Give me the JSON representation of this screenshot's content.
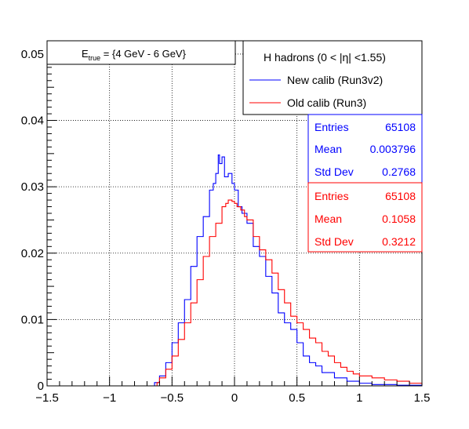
{
  "chart_data": {
    "type": "histogram",
    "xlim": [
      -1.5,
      1.5
    ],
    "ylim": [
      0,
      0.052
    ],
    "x_ticks": [
      "−1.5",
      "−1",
      "−0.5",
      "0",
      "0.5",
      "1",
      "1.5"
    ],
    "y_ticks": [
      "0",
      "0.01",
      "0.02",
      "0.03",
      "0.04",
      "0.05"
    ],
    "grid": true,
    "energy_label": {
      "main": "E",
      "sub": "true",
      "rest": " =  {4 GeV - 6 GeV}"
    },
    "legend": {
      "header": "H hadrons (0 < |η| <1.55)",
      "position": "top-right",
      "entries": [
        "New calib (Run3v2)",
        "Old calib (Run3)"
      ]
    },
    "stats": [
      {
        "color": "#0000ff",
        "rows": [
          [
            "Entries",
            "65108"
          ],
          [
            "Mean",
            "0.003796"
          ],
          [
            "Std Dev",
            "0.2768"
          ]
        ]
      },
      {
        "color": "#ff0000",
        "rows": [
          [
            "Entries",
            "65108"
          ],
          [
            "Mean",
            "0.1058"
          ],
          [
            "Std Dev",
            "0.3212"
          ]
        ]
      }
    ],
    "series": [
      {
        "color": "#0000ff",
        "points": [
          [
            -1.5,
            0
          ],
          [
            -0.66,
            0
          ],
          [
            -0.64,
            0.0005
          ],
          [
            -0.6,
            0.0015
          ],
          [
            -0.55,
            0.0035
          ],
          [
            -0.5,
            0.0065
          ],
          [
            -0.45,
            0.0095
          ],
          [
            -0.4,
            0.013
          ],
          [
            -0.35,
            0.018
          ],
          [
            -0.3,
            0.0225
          ],
          [
            -0.25,
            0.0255
          ],
          [
            -0.2,
            0.0295
          ],
          [
            -0.17,
            0.0305
          ],
          [
            -0.15,
            0.032
          ],
          [
            -0.13,
            0.0348
          ],
          [
            -0.12,
            0.0335
          ],
          [
            -0.1,
            0.0345
          ],
          [
            -0.08,
            0.0315
          ],
          [
            -0.05,
            0.032
          ],
          [
            -0.02,
            0.0305
          ],
          [
            0,
            0.0295
          ],
          [
            0.03,
            0.027
          ],
          [
            0.06,
            0.026
          ],
          [
            0.1,
            0.0245
          ],
          [
            0.15,
            0.021
          ],
          [
            0.2,
            0.0195
          ],
          [
            0.25,
            0.0165
          ],
          [
            0.3,
            0.014
          ],
          [
            0.35,
            0.011
          ],
          [
            0.4,
            0.0095
          ],
          [
            0.45,
            0.0085
          ],
          [
            0.5,
            0.0065
          ],
          [
            0.55,
            0.0045
          ],
          [
            0.6,
            0.0035
          ],
          [
            0.65,
            0.003
          ],
          [
            0.7,
            0.002
          ],
          [
            0.8,
            0.0012
          ],
          [
            0.9,
            0.0007
          ],
          [
            1.0,
            0.0004
          ],
          [
            1.1,
            0.0002
          ],
          [
            1.3,
            0.0001
          ],
          [
            1.5,
            0
          ]
        ]
      },
      {
        "color": "#ff0000",
        "points": [
          [
            -1.5,
            0
          ],
          [
            -0.65,
            0
          ],
          [
            -0.62,
            0.0005
          ],
          [
            -0.6,
            0.0012
          ],
          [
            -0.55,
            0.0025
          ],
          [
            -0.5,
            0.0045
          ],
          [
            -0.45,
            0.007
          ],
          [
            -0.4,
            0.0095
          ],
          [
            -0.35,
            0.0125
          ],
          [
            -0.3,
            0.016
          ],
          [
            -0.25,
            0.0195
          ],
          [
            -0.2,
            0.0225
          ],
          [
            -0.15,
            0.0245
          ],
          [
            -0.1,
            0.027
          ],
          [
            -0.07,
            0.0275
          ],
          [
            -0.05,
            0.028
          ],
          [
            -0.02,
            0.0278
          ],
          [
            0,
            0.0275
          ],
          [
            0.02,
            0.027
          ],
          [
            0.05,
            0.0265
          ],
          [
            0.08,
            0.0255
          ],
          [
            0.1,
            0.025
          ],
          [
            0.15,
            0.0225
          ],
          [
            0.2,
            0.0205
          ],
          [
            0.25,
            0.019
          ],
          [
            0.3,
            0.017
          ],
          [
            0.35,
            0.0145
          ],
          [
            0.4,
            0.0125
          ],
          [
            0.45,
            0.0105
          ],
          [
            0.5,
            0.0095
          ],
          [
            0.55,
            0.0085
          ],
          [
            0.6,
            0.0072
          ],
          [
            0.65,
            0.0065
          ],
          [
            0.7,
            0.0052
          ],
          [
            0.75,
            0.0045
          ],
          [
            0.8,
            0.0035
          ],
          [
            0.85,
            0.0028
          ],
          [
            0.9,
            0.0022
          ],
          [
            0.95,
            0.0018
          ],
          [
            1.0,
            0.0015
          ],
          [
            1.1,
            0.0012
          ],
          [
            1.2,
            0.0009
          ],
          [
            1.3,
            0.0007
          ],
          [
            1.4,
            0.0004
          ],
          [
            1.5,
            0.0002
          ]
        ]
      }
    ]
  }
}
